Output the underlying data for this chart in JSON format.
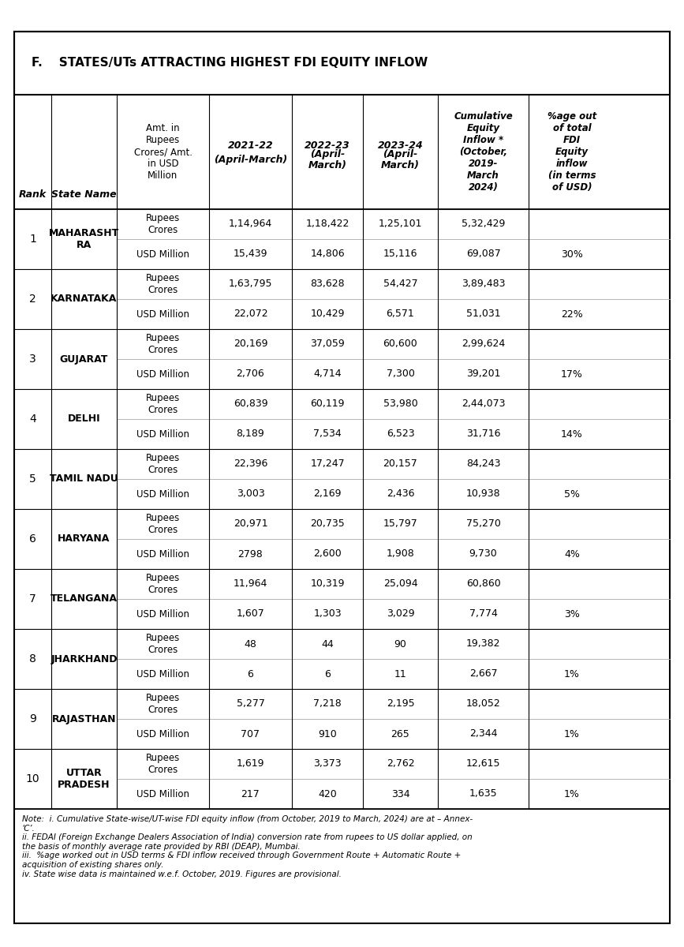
{
  "title": "F.    STATES/UTs ATTRACTING HIGHEST FDI EQUITY INFLOW",
  "col_headers": [
    "Rank",
    "State Name",
    "Amt. in\nRupees\nCrores/ Amt.\nin USD\nMillion",
    "2021-22\n(April-March)",
    "2022-23\n(April-\nMarch)",
    "2023-24\n(April-\nMarch)",
    "Cumulative\nEquity\nInflow *\n(October,\n2019-\nMarch\n2024)",
    "%age out\nof total\nFDI\nEquity\ninflow\n(in terms\nof USD)"
  ],
  "rows": [
    {
      "rank": "1",
      "state": "MAHARASHT\nRA",
      "rows_data": [
        [
          "Rupees\nCrores",
          "1,14,964",
          "1,18,422",
          "1,25,101",
          "5,32,429",
          ""
        ],
        [
          "USD Million",
          "15,439",
          "14,806",
          "15,116",
          "69,087",
          "30%"
        ]
      ]
    },
    {
      "rank": "2",
      "state": "KARNATAKA",
      "rows_data": [
        [
          "Rupees\nCrores",
          "1,63,795",
          "83,628",
          "54,427",
          "3,89,483",
          ""
        ],
        [
          "USD Million",
          "22,072",
          "10,429",
          "6,571",
          "51,031",
          "22%"
        ]
      ]
    },
    {
      "rank": "3",
      "state": "GUJARAT",
      "rows_data": [
        [
          "Rupees\nCrores",
          "20,169",
          "37,059",
          "60,600",
          "2,99,624",
          ""
        ],
        [
          "USD Million",
          "2,706",
          "4,714",
          "7,300",
          "39,201",
          "17%"
        ]
      ]
    },
    {
      "rank": "4",
      "state": "DELHI",
      "rows_data": [
        [
          "Rupees\nCrores",
          "60,839",
          "60,119",
          "53,980",
          "2,44,073",
          ""
        ],
        [
          "USD Million",
          "8,189",
          "7,534",
          "6,523",
          "31,716",
          "14%"
        ]
      ]
    },
    {
      "rank": "5",
      "state": "TAMIL NADU",
      "rows_data": [
        [
          "Rupees\nCrores",
          "22,396",
          "17,247",
          "20,157",
          "84,243",
          ""
        ],
        [
          "USD Million",
          "3,003",
          "2,169",
          "2,436",
          "10,938",
          "5%"
        ]
      ]
    },
    {
      "rank": "6",
      "state": "HARYANA",
      "rows_data": [
        [
          "Rupees\nCrores",
          "20,971",
          "20,735",
          "15,797",
          "75,270",
          ""
        ],
        [
          "USD Million",
          "2798",
          "2,600",
          "1,908",
          "9,730",
          "4%"
        ]
      ]
    },
    {
      "rank": "7",
      "state": "TELANGANA",
      "rows_data": [
        [
          "Rupees\nCrores",
          "11,964",
          "10,319",
          "25,094",
          "60,860",
          ""
        ],
        [
          "USD Million",
          "1,607",
          "1,303",
          "3,029",
          "7,774",
          "3%"
        ]
      ]
    },
    {
      "rank": "8",
      "state": "JHARKHAND",
      "rows_data": [
        [
          "Rupees\nCrores",
          "48",
          "44",
          "90",
          "19,382",
          ""
        ],
        [
          "USD Million",
          "6",
          "6",
          "11",
          "2,667",
          "1%"
        ]
      ]
    },
    {
      "rank": "9",
      "state": "RAJASTHAN",
      "rows_data": [
        [
          "Rupees\nCrores",
          "5,277",
          "7,218",
          "2,195",
          "18,052",
          ""
        ],
        [
          "USD Million",
          "707",
          "910",
          "265",
          "2,344",
          "1%"
        ]
      ]
    },
    {
      "rank": "10",
      "state": "UTTAR\nPRADESH",
      "rows_data": [
        [
          "Rupees\nCrores",
          "1,619",
          "3,373",
          "2,762",
          "12,615",
          ""
        ],
        [
          "USD Million",
          "217",
          "420",
          "334",
          "1,635",
          "1%"
        ]
      ]
    }
  ],
  "note_text": "Note:  i. Cumulative State-wise/UT-wise FDI equity inflow (from October, 2019 to March, 2024) are at – Annex-\n‘C’.\nii. FEDAI (Foreign Exchange Dealers Association of India) conversion rate from rupees to US dollar applied, on\nthe basis of monthly average rate provided by RBI (DEAP), Mumbai.\niii.  %age worked out in USD terms & FDI inflow received through Government Route + Automatic Route +\nacquisition of existing shares only.\niv. State wise data is maintained w.e.f. October, 2019. Figures are provisional.",
  "bg_color": "#ffffff",
  "border_color": "#000000",
  "header_underline_cols": [
    3,
    4,
    5,
    6,
    7
  ],
  "italic_cols": [
    6,
    7
  ]
}
